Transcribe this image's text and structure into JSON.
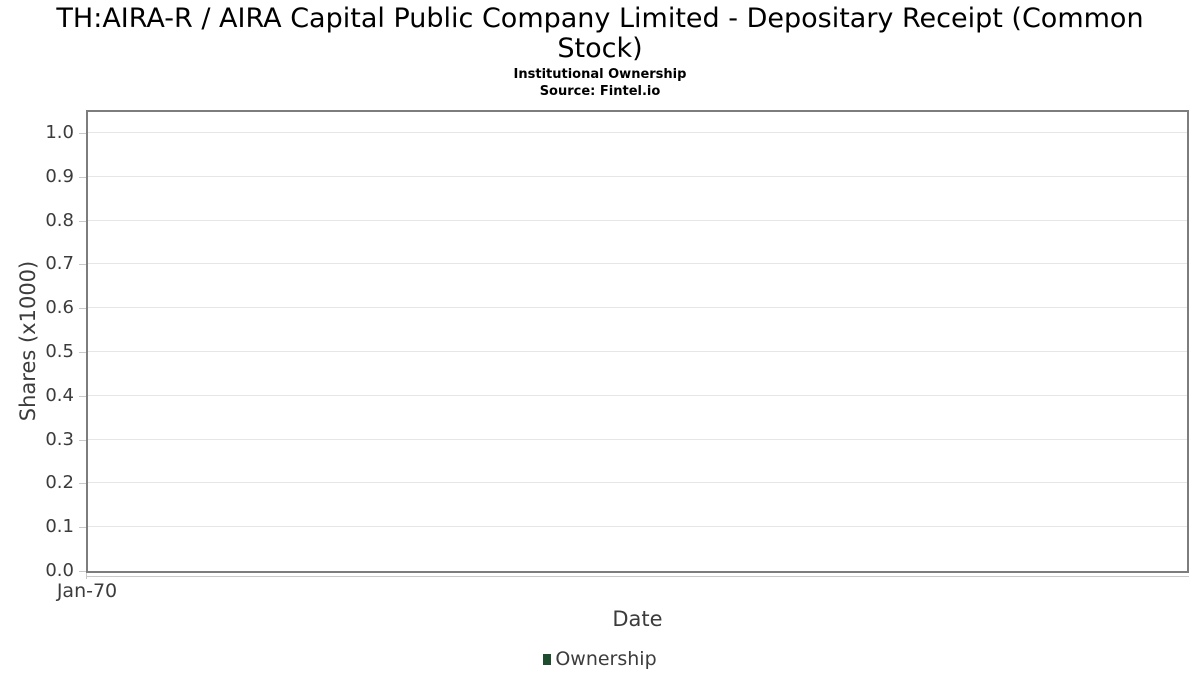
{
  "header": {
    "title_lines": [
      "TH:AIRA-R / AIRA Capital Public Company Limited - Depositary Receipt (Common",
      "Stock)"
    ],
    "subtitle": "Institutional Ownership",
    "source": "Source: Fintel.io"
  },
  "colors": {
    "title_text": "#000000",
    "axis_text": "#3c3c3c",
    "plot_border": "#7d7d7d",
    "gridline": "#e6e6e6",
    "tick_mark": "#c9c9c9",
    "series_green": "#1e4d2d",
    "background": "#ffffff"
  },
  "chart_data": {
    "type": "line",
    "title": "TH:AIRA-R / AIRA Capital Public Company Limited - Depositary Receipt (Common Stock)",
    "subtitle": "Institutional Ownership",
    "source": "Source: Fintel.io",
    "xlabel": "Date",
    "ylabel": "Shares (x1000)",
    "x_tick_labels": [
      "Jan-70"
    ],
    "y_ticks": [
      0.0,
      0.1,
      0.2,
      0.3,
      0.4,
      0.5,
      0.6,
      0.7,
      0.8,
      0.9,
      1.0
    ],
    "y_tick_decimals": 1,
    "ylim": [
      0,
      1.048
    ],
    "grid": "horizontal",
    "legend_position": "bottom",
    "series": [
      {
        "name": "Ownership",
        "color": "#1e4d2d",
        "x": [],
        "values": []
      }
    ]
  }
}
